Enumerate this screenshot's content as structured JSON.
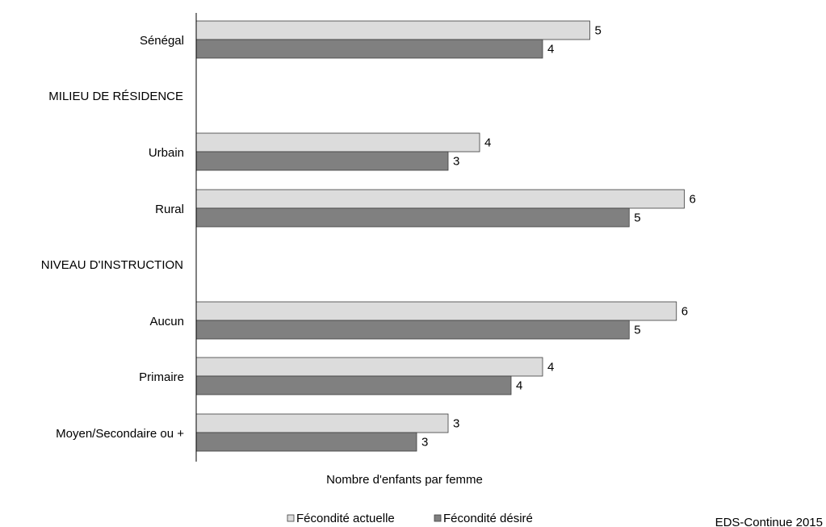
{
  "chart_data": {
    "type": "bar",
    "orientation": "horizontal",
    "categories": [
      "Sénégal",
      "MILIEU DE RÉSIDENCE",
      "Urbain",
      "Rural",
      "NIVEAU D'INSTRUCTION",
      "Aucun",
      "Primaire",
      "Moyen/Secondaire ou +"
    ],
    "section_headers": [
      "MILIEU DE RÉSIDENCE",
      "NIVEAU D'INSTRUCTION"
    ],
    "series": [
      {
        "name": "Fécondité actuelle",
        "color": "#dcdcdc",
        "values": [
          5.0,
          null,
          3.6,
          6.2,
          null,
          6.1,
          4.4,
          3.2
        ],
        "labels": [
          "5",
          "",
          "4",
          "6",
          "",
          "6",
          "4",
          "3"
        ]
      },
      {
        "name": "Fécondité désiré",
        "color": "#808080",
        "values": [
          4.4,
          null,
          3.2,
          5.5,
          null,
          5.5,
          4.0,
          2.8
        ],
        "labels": [
          "4",
          "",
          "3",
          "5",
          "",
          "5",
          "4",
          "3"
        ]
      }
    ],
    "xlabel": "Nombre d'enfants par femme",
    "xlim": [
      0,
      8
    ],
    "grid": false,
    "legend": "bottom-center",
    "source": "EDS-Continue 2015"
  }
}
